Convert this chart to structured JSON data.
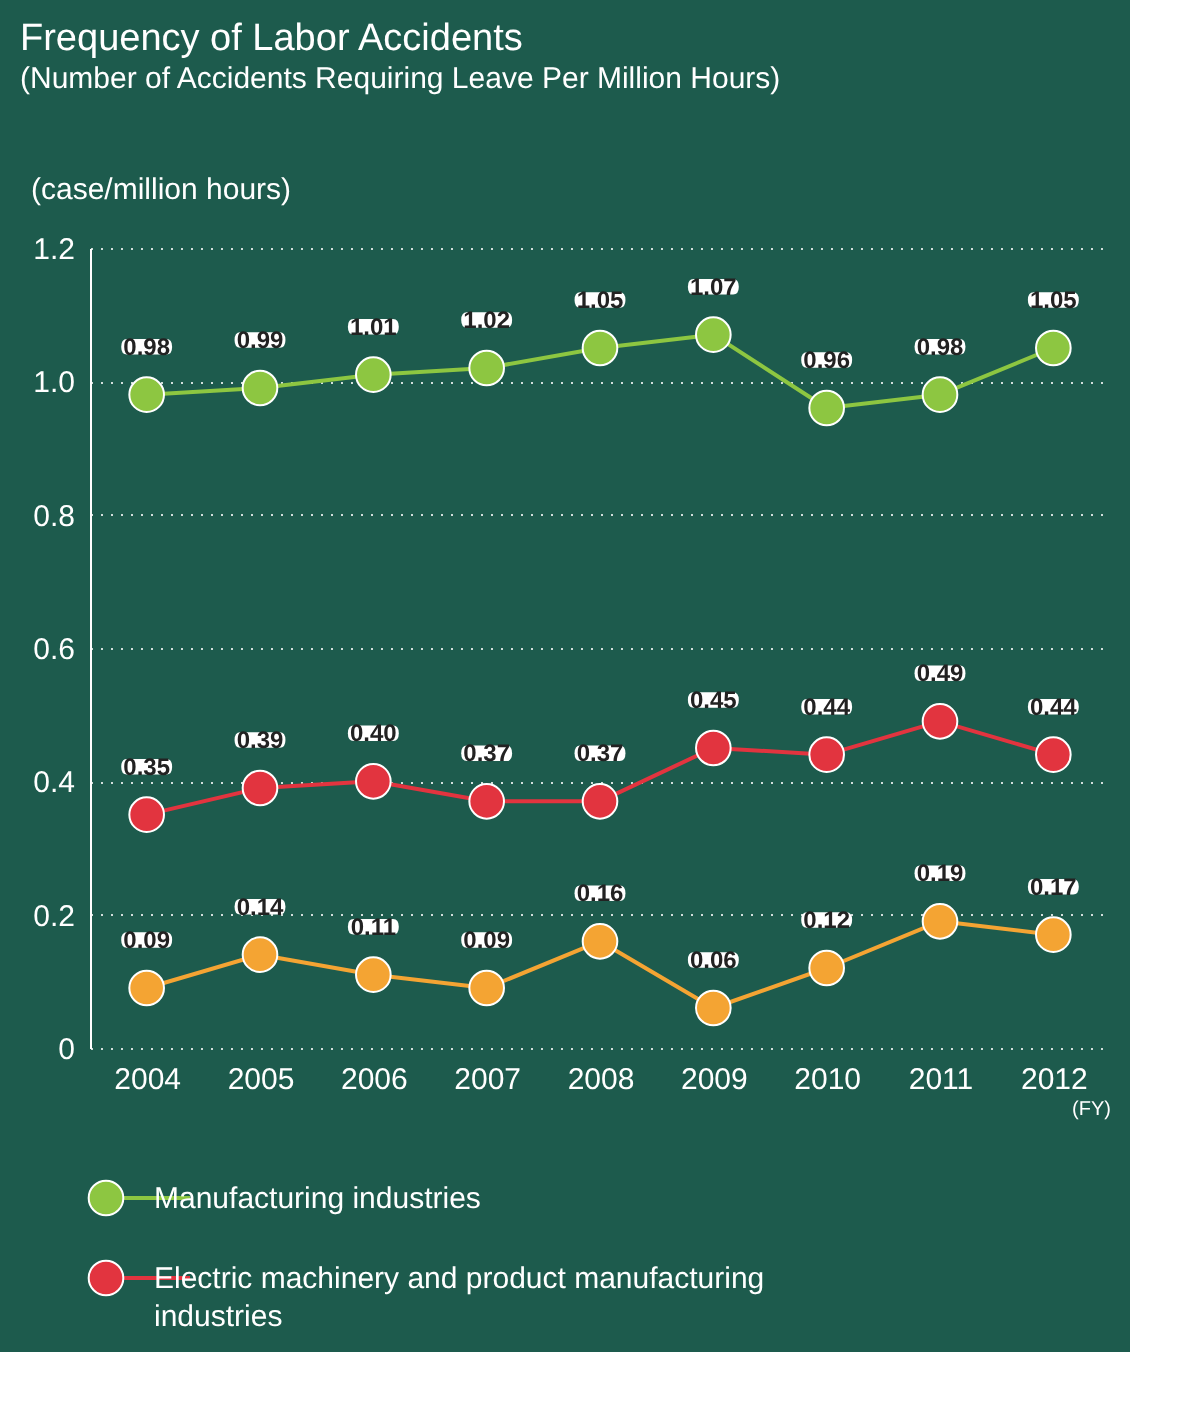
{
  "chart_data": {
    "type": "line",
    "title": "Frequency of Labor Accidents",
    "subtitle": "(Number of Accidents Requiring Leave Per Million Hours)",
    "ylabel": "(case/million hours)",
    "xlabel": "(FY)",
    "categories": [
      "2004",
      "2005",
      "2006",
      "2007",
      "2008",
      "2009",
      "2010",
      "2011",
      "2012"
    ],
    "series": [
      {
        "color": "#f4a433",
        "values": [
          0.09,
          0.14,
          0.11,
          0.09,
          0.16,
          0.06,
          0.12,
          0.19,
          0.17
        ],
        "value_labels": [
          "0.09",
          "0.14",
          "0.11",
          "0.09",
          "0.16",
          "0.06",
          "0.12",
          "0.19",
          "0.17"
        ]
      },
      {
        "name": "Manufacturing industries",
        "color": "#8dc641",
        "values": [
          0.98,
          0.99,
          1.01,
          1.02,
          1.05,
          1.07,
          0.96,
          0.98,
          1.05
        ],
        "value_labels": [
          "0.98",
          "0.99",
          "1.01",
          "1.02",
          "1.05",
          "1.07",
          "0.96",
          "0.98",
          "1.05"
        ]
      },
      {
        "name": "Electric machinery and product manufacturing industries",
        "color": "#e2343f",
        "values": [
          0.35,
          0.39,
          0.4,
          0.37,
          0.37,
          0.45,
          0.44,
          0.49,
          0.44
        ],
        "value_labels": [
          "0.35",
          "0.39",
          "0.40",
          "0.37",
          "0.37",
          "0.45",
          "0.44",
          "0.49",
          "0.44"
        ]
      }
    ],
    "ylim": [
      0,
      1.2
    ],
    "yticks": [
      0,
      0.2,
      0.4,
      0.6,
      0.8,
      {
        "value": 1,
        "label": "1.0"
      },
      1.2
    ],
    "grid": "y",
    "legend": "bottom",
    "marker": "circle",
    "line_style": "solid"
  }
}
